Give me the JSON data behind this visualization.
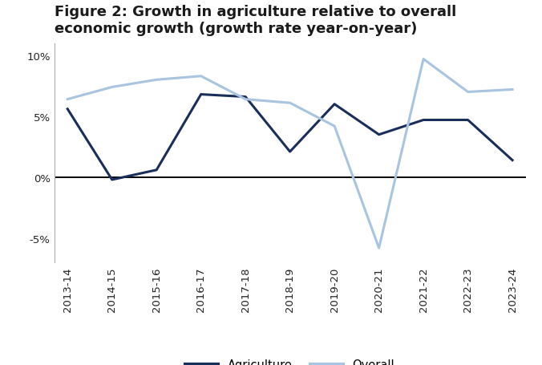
{
  "title": "Figure 2: Growth in agriculture relative to overall\neconomic growth (growth rate year-on-year)",
  "x_labels": [
    "2013-14",
    "2014-15",
    "2015-16",
    "2016-17",
    "2017-18",
    "2018-19",
    "2019-20",
    "2020-21",
    "2021-22",
    "2022-23",
    "2023-24"
  ],
  "agriculture": [
    5.6,
    -0.2,
    0.6,
    6.8,
    6.6,
    2.1,
    6.0,
    3.5,
    4.7,
    4.7,
    1.4
  ],
  "overall": [
    6.4,
    7.4,
    8.0,
    8.3,
    6.4,
    6.1,
    4.2,
    -5.8,
    9.7,
    7.0,
    7.2
  ],
  "agriculture_color": "#1a2e5a",
  "overall_color": "#a8c4e0",
  "ylim": [
    -7,
    11
  ],
  "yticks": [
    -5,
    0,
    5,
    10
  ],
  "ytick_labels": [
    "-5%",
    "0%",
    "5%",
    "10%"
  ],
  "line_width": 2.2,
  "legend_labels": [
    "Agriculture",
    "Overall"
  ],
  "background_color": "#ffffff",
  "title_fontsize": 13,
  "title_color": "#1a1a1a",
  "tick_fontsize": 9.5,
  "legend_fontsize": 10.5
}
